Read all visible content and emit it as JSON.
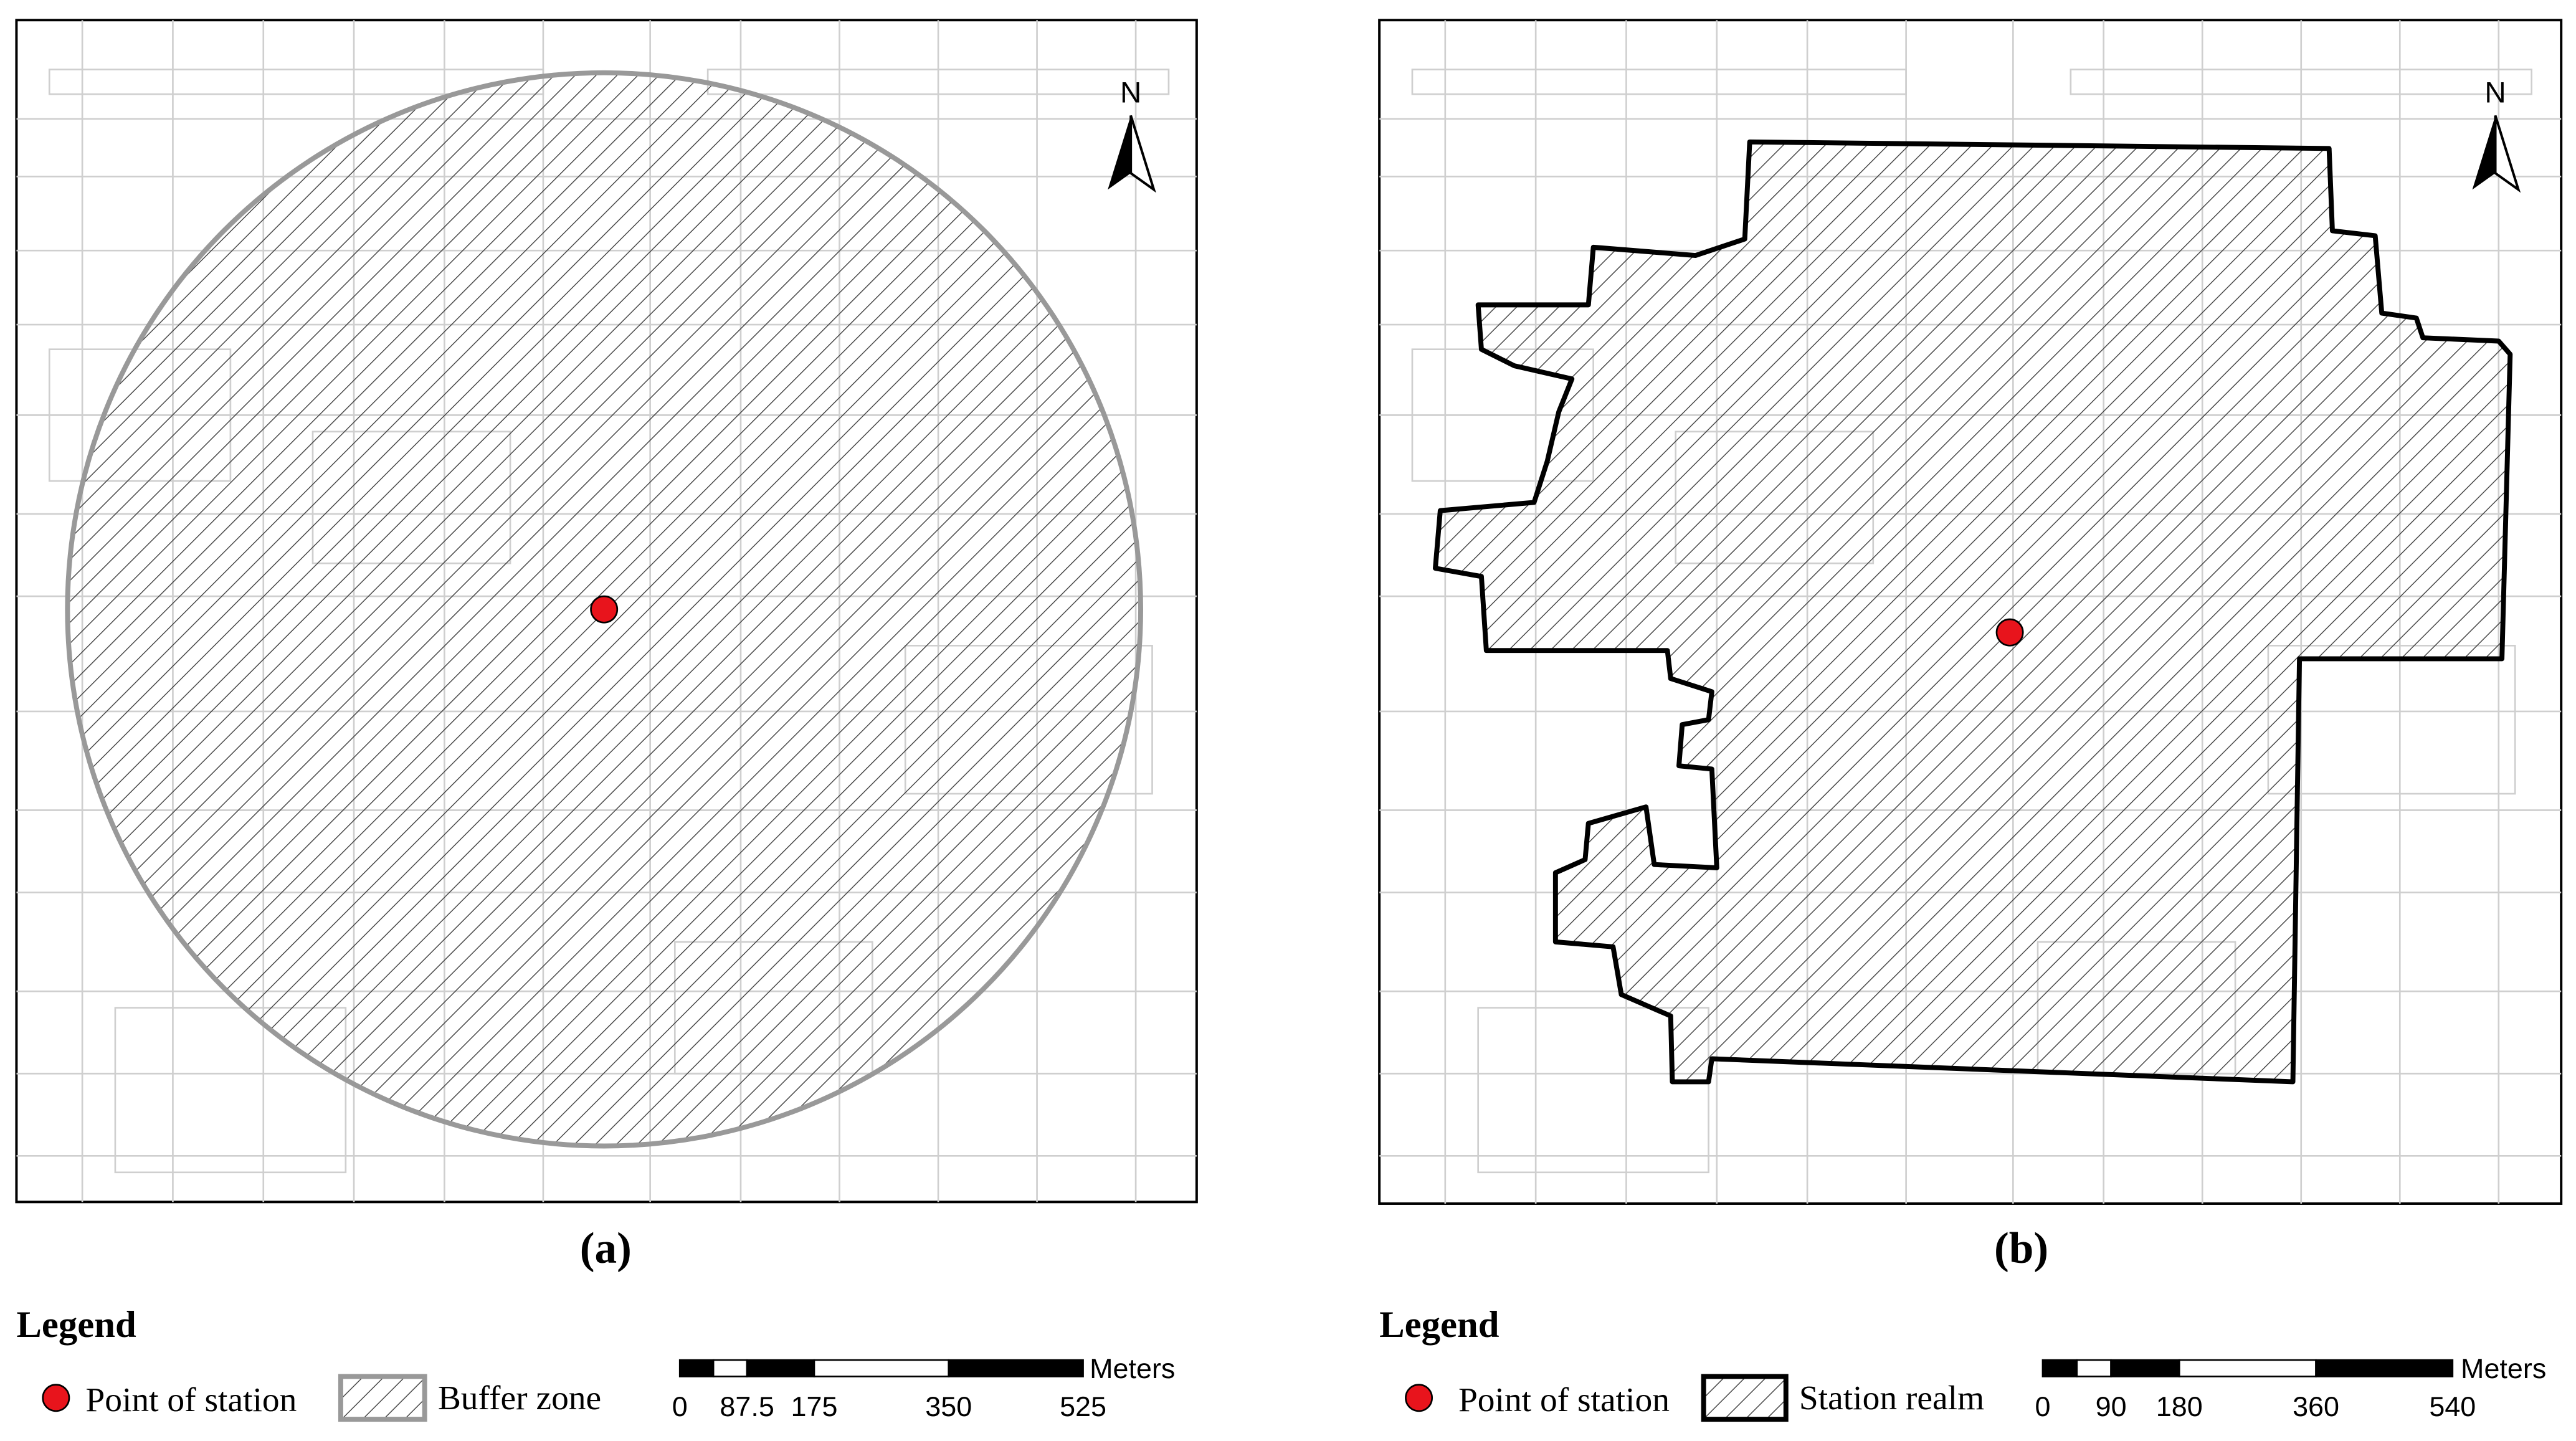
{
  "panels": [
    {
      "label": "(a)",
      "north": "N",
      "legend": {
        "title": "Legend",
        "items": [
          "Point of station",
          "Buffer zone"
        ]
      },
      "scale": {
        "unit": "Meters",
        "ticks": [
          0,
          87.5,
          175,
          350,
          525
        ]
      }
    },
    {
      "label": "(b)",
      "north": "N",
      "legend": {
        "title": "Legend",
        "items": [
          "Point of station",
          "Station realm"
        ]
      },
      "scale": {
        "unit": "Meters",
        "ticks": [
          0,
          90,
          180,
          360,
          540
        ]
      }
    }
  ]
}
